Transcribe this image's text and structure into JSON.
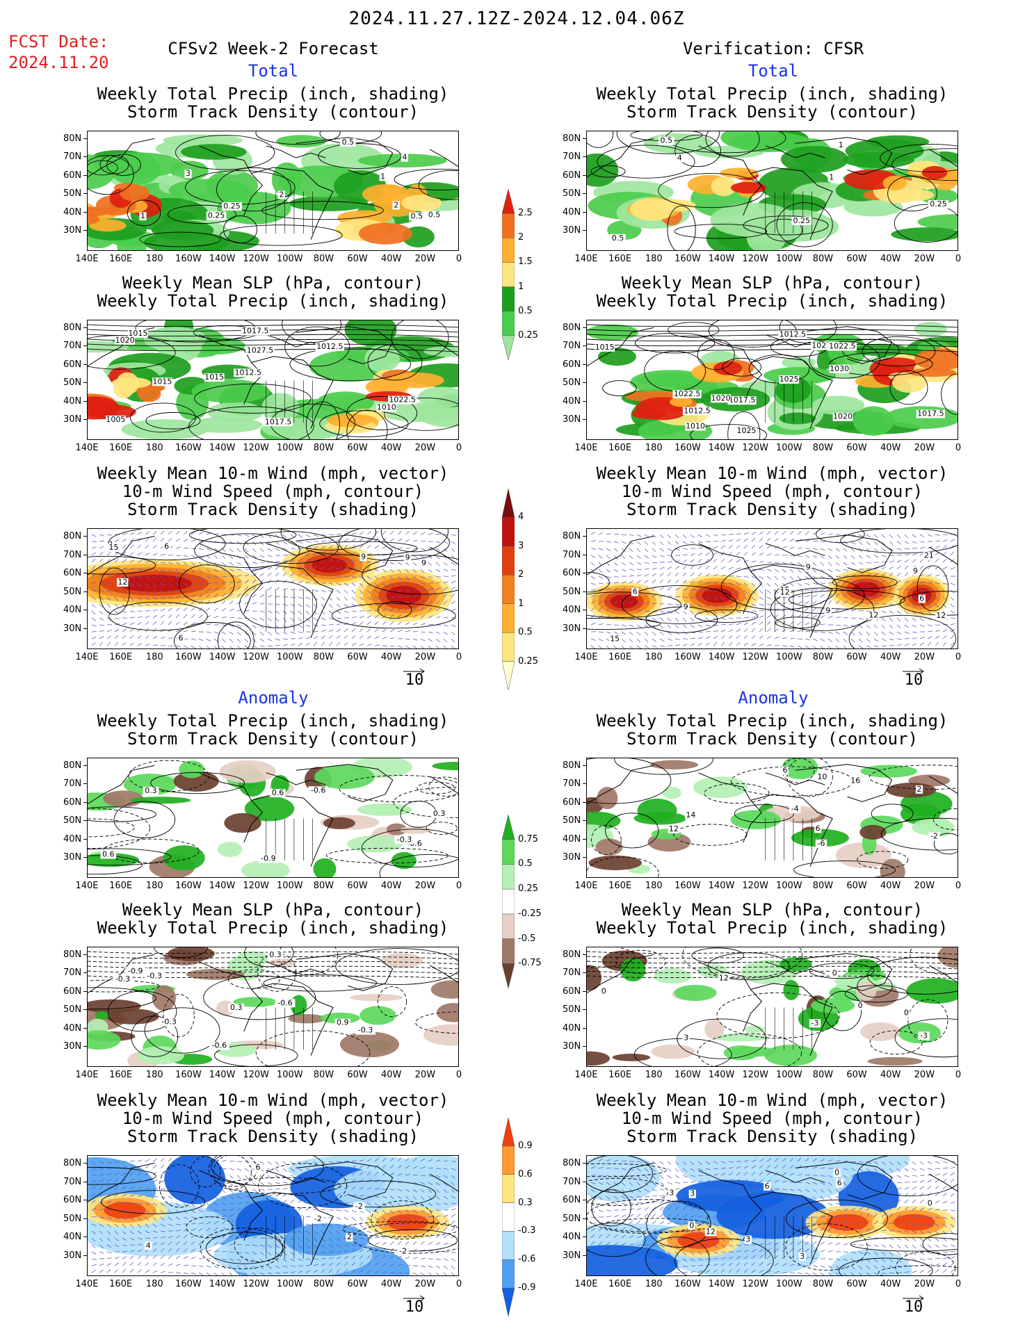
{
  "header": {
    "valid_period": "2024.11.27.12Z-2024.12.04.06Z",
    "fcst_date_label": "FCST Date:",
    "fcst_date_value": "2024.11.20",
    "left_title": "CFSv2 Week-2 Forecast",
    "right_title": "Verification: CFSR"
  },
  "sections": {
    "total": "Total",
    "anomaly": "Anomaly"
  },
  "panel_titles": {
    "precip_storm": [
      "Weekly Total Precip (inch, shading)",
      "Storm Track Density (contour)"
    ],
    "slp_precip": [
      "Weekly Mean SLP (hPa, contour)",
      "Weekly Total Precip (inch, shading)"
    ],
    "wind_storm": [
      "Weekly Mean 10-m Wind (mph, vector)",
      "10-m Wind Speed (mph, contour)",
      "Storm Track Density (shading)"
    ]
  },
  "axes": {
    "lat_labels": [
      "80N",
      "70N",
      "60N",
      "50N",
      "40N",
      "30N"
    ],
    "lon_labels": [
      "140E",
      "160E",
      "180",
      "160W",
      "140W",
      "120W",
      "100W",
      "80W",
      "60W",
      "40W",
      "20W",
      "0"
    ]
  },
  "vector_ref": "10",
  "colorbars": {
    "precip_total": {
      "labels": [
        "2.5",
        "2",
        "1.5",
        "1",
        "0.5",
        "0.25"
      ],
      "colors": [
        "#9ee69e",
        "#4ccc4c",
        "#1e9e1e",
        "#ffe680",
        "#ffb030",
        "#f07020",
        "#e02010"
      ]
    },
    "storm_total": {
      "labels": [
        "4",
        "3",
        "2",
        "1",
        "0.5",
        "0.25"
      ],
      "colors": [
        "#ffffd0",
        "#ffe680",
        "#ffb030",
        "#f08020",
        "#e04010",
        "#c01010",
        "#7a0c0c"
      ]
    },
    "precip_anom": {
      "labels": [
        "0.75",
        "0.5",
        "0.25",
        "-0.25",
        "-0.5",
        "-0.75"
      ],
      "colors": [
        "#6b4030",
        "#a07868",
        "#e6cfc4",
        "#ffffff",
        "#b4f0b4",
        "#5cd85c",
        "#20b020"
      ]
    },
    "storm_anom": {
      "labels": [
        "0.9",
        "0.6",
        "0.3",
        "-0.3",
        "-0.6",
        "-0.9"
      ],
      "colors": [
        "#1060e0",
        "#50a0f0",
        "#b0e0fa",
        "#ffffff",
        "#ffe680",
        "#ff9a30",
        "#f04010"
      ]
    }
  },
  "contour_labels": {
    "p1": [
      "0.5",
      "0.25",
      "0.5",
      "0.5",
      "4",
      "3",
      "2",
      "1",
      "0.25",
      "1",
      "2"
    ],
    "p2": [
      "1015",
      "1017.5",
      "1022.5",
      "1015",
      "1012.5",
      "1010",
      "1027.5",
      "1012.5",
      "1015",
      "1017.5",
      "1020",
      "1005"
    ],
    "p3": [
      "6",
      "9",
      "9",
      "12",
      "9",
      "9",
      "15",
      "6"
    ],
    "p4": [
      "0.5",
      "0.25",
      "0.5",
      "1",
      "4",
      "0.25",
      "1"
    ],
    "p5": [
      "1017.5",
      "1027.5",
      "1020",
      "1017.5",
      "1015",
      "1012.5",
      "1010",
      "1022.5",
      "1025",
      "1030",
      "1020",
      "1012.5",
      "1025",
      "1022.5"
    ],
    "p6": [
      "9",
      "12",
      "15",
      "15",
      "21",
      "6",
      "9",
      "9",
      "12",
      "6",
      "9",
      "12"
    ],
    "p7": [
      "-0.9",
      "0.3",
      "0.6",
      "-0.6",
      "0.3",
      "0.6",
      "-0.3",
      "-0.6"
    ],
    "p8": [
      "-0.6",
      "0.3",
      "-0.3",
      "-0.3",
      "-0.6",
      "-0.3",
      "-0.9",
      "-0.3",
      "0.3",
      "0.9"
    ],
    "p9": [
      "-2",
      "2",
      "-2",
      "6",
      "-2",
      "4"
    ],
    "p10": [
      "6",
      "12",
      "14",
      "10",
      "16",
      "-4",
      "6",
      "2",
      "-2",
      "-6"
    ],
    "p11": [
      "0",
      "-3",
      "0",
      "0",
      "-3",
      "3",
      "0",
      "12"
    ],
    "p12": [
      "6",
      "0",
      "3",
      "3",
      "3",
      "0",
      "3",
      "6",
      "12",
      "0"
    ]
  }
}
